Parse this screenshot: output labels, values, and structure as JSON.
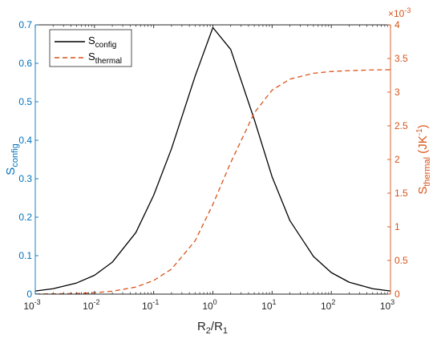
{
  "chart_data": {
    "type": "line",
    "x_scale": "log",
    "xlim": [
      0.001,
      1000
    ],
    "x_ticks": [
      {
        "mant": "10",
        "exp": "-3",
        "v": 0.001
      },
      {
        "mant": "10",
        "exp": "-2",
        "v": 0.01
      },
      {
        "mant": "10",
        "exp": "-1",
        "v": 0.1
      },
      {
        "mant": "10",
        "exp": "0",
        "v": 1
      },
      {
        "mant": "10",
        "exp": "1",
        "v": 10
      },
      {
        "mant": "10",
        "exp": "2",
        "v": 100
      },
      {
        "mant": "10",
        "exp": "3",
        "v": 1000
      }
    ],
    "xlabel": {
      "main1": "R",
      "sub1": "2",
      "slash": "/R",
      "sub2": "1"
    },
    "left_axis": {
      "color": "#0072BD",
      "ylim": [
        0,
        0.7
      ],
      "ticks": [
        "0",
        "0.1",
        "0.2",
        "0.3",
        "0.4",
        "0.5",
        "0.6",
        "0.7"
      ],
      "label": {
        "main": "S",
        "sub": "config"
      }
    },
    "right_axis": {
      "color": "#D95319",
      "ylim": [
        0,
        4
      ],
      "ticks": [
        "0",
        "0.5",
        "1",
        "1.5",
        "2",
        "2.5",
        "3",
        "3.5",
        "4"
      ],
      "multiplier": {
        "base": "×10",
        "exp": "-3"
      },
      "label": {
        "main": "S",
        "sub": "thermal",
        "unit_open": " (JK",
        "unit_exp": "-1",
        "unit_close": ")"
      }
    },
    "legend": {
      "position": "top-left",
      "entries": [
        {
          "main": "S",
          "sub": "config",
          "color": "#000000",
          "style": "solid"
        },
        {
          "main": "S",
          "sub": "thermal",
          "color": "#D95319",
          "style": "dashed"
        }
      ]
    },
    "series": [
      {
        "name": "Sconfig",
        "axis": "left",
        "color": "#000000",
        "style": "solid",
        "x": [
          0.001,
          0.002,
          0.005,
          0.01,
          0.02,
          0.05,
          0.1,
          0.2,
          0.5,
          1,
          2,
          5,
          10,
          20,
          50,
          100,
          200,
          500,
          1000
        ],
        "y": [
          0.008,
          0.014,
          0.029,
          0.049,
          0.083,
          0.16,
          0.257,
          0.378,
          0.566,
          0.693,
          0.636,
          0.454,
          0.305,
          0.191,
          0.098,
          0.056,
          0.031,
          0.014,
          0.008
        ]
      },
      {
        "name": "Sthermal",
        "axis": "right",
        "color": "#D95319",
        "style": "dashed",
        "x": [
          0.001,
          0.002,
          0.005,
          0.01,
          0.02,
          0.05,
          0.1,
          0.2,
          0.5,
          1,
          2,
          5,
          10,
          20,
          50,
          100,
          200,
          500,
          1000
        ],
        "y": [
          0.002,
          0.004,
          0.01,
          0.021,
          0.043,
          0.105,
          0.202,
          0.372,
          0.79,
          1.333,
          1.954,
          2.692,
          3.03,
          3.194,
          3.281,
          3.307,
          3.32,
          3.33,
          3.333
        ]
      }
    ]
  }
}
